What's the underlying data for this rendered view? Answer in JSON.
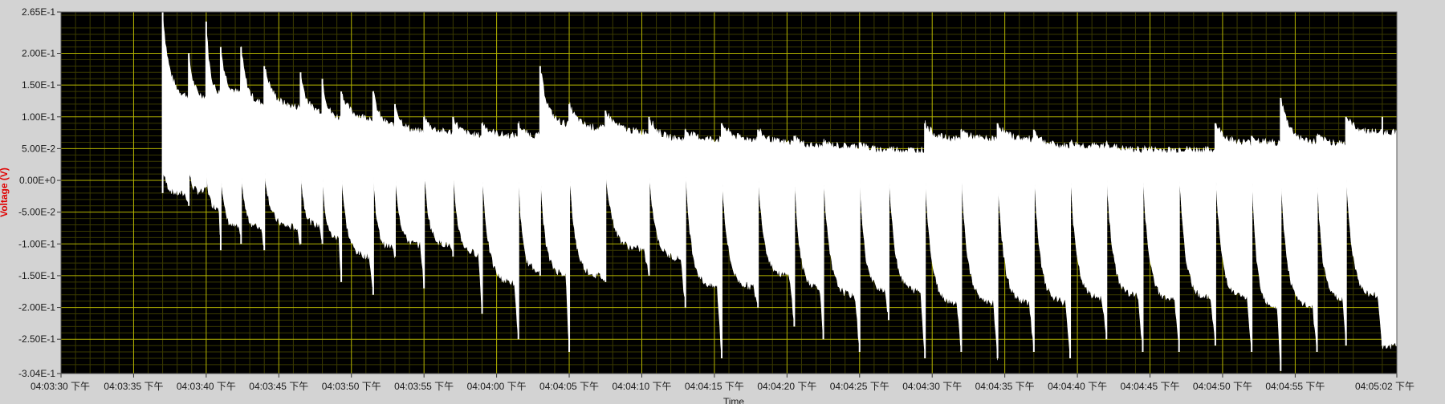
{
  "chart_data": {
    "type": "line",
    "title": "",
    "xlabel": "Time",
    "ylabel": "Voltage (V)",
    "ylim": [
      -0.304,
      0.265
    ],
    "xlim_seconds_from_start": [
      0,
      92
    ],
    "grid": true,
    "legend": "none",
    "colors": {
      "plot_bg": "#000000",
      "grid_major": "#b4b400",
      "grid_minor": "#3a3a00",
      "trace": "#ffffff",
      "frame": "#d3d3d3",
      "ylabel": "#e00000"
    },
    "y_ticks": [
      {
        "value": 0.265,
        "label": "2.65E-1"
      },
      {
        "value": 0.2,
        "label": "2.00E-1"
      },
      {
        "value": 0.15,
        "label": "1.50E-1"
      },
      {
        "value": 0.1,
        "label": "1.00E-1"
      },
      {
        "value": 0.05,
        "label": "5.00E-2"
      },
      {
        "value": 0.0,
        "label": "0.00E+0"
      },
      {
        "value": -0.05,
        "label": "-5.00E-2"
      },
      {
        "value": -0.1,
        "label": "-1.00E-1"
      },
      {
        "value": -0.15,
        "label": "-1.50E-1"
      },
      {
        "value": -0.2,
        "label": "-2.00E-1"
      },
      {
        "value": -0.25,
        "label": "-2.50E-1"
      },
      {
        "value": -0.304,
        "label": "-3.04E-1"
      }
    ],
    "x_ticks": [
      {
        "value": 0,
        "label": "04:03:30 下午"
      },
      {
        "value": 5,
        "label": "04:03:35 下午"
      },
      {
        "value": 10,
        "label": "04:03:40 下午"
      },
      {
        "value": 15,
        "label": "04:03:45 下午"
      },
      {
        "value": 20,
        "label": "04:03:50 下午"
      },
      {
        "value": 25,
        "label": "04:03:55 下午"
      },
      {
        "value": 30,
        "label": "04:04:00 下午"
      },
      {
        "value": 35,
        "label": "04:04:05 下午"
      },
      {
        "value": 40,
        "label": "04:04:10 下午"
      },
      {
        "value": 45,
        "label": "04:04:15 下午"
      },
      {
        "value": 50,
        "label": "04:04:20 下午"
      },
      {
        "value": 55,
        "label": "04:04:25 下午"
      },
      {
        "value": 60,
        "label": "04:04:30 下午"
      },
      {
        "value": 65,
        "label": "04:04:35 下午"
      },
      {
        "value": 70,
        "label": "04:04:40 下午"
      },
      {
        "value": 75,
        "label": "04:04:45 下午"
      },
      {
        "value": 80,
        "label": "04:04:50 下午"
      },
      {
        "value": 85,
        "label": "04:04:55 下午"
      },
      {
        "value": 92,
        "label": "04:05:02 下午"
      }
    ],
    "signal": {
      "start": 7.0,
      "end": 92,
      "spikes": [
        {
          "t": 7.0,
          "min": -0.02,
          "max": 0.265
        },
        {
          "t": 8.8,
          "min": -0.04,
          "max": 0.2
        },
        {
          "t": 10.0,
          "min": -0.01,
          "max": 0.25
        },
        {
          "t": 11.0,
          "min": -0.11,
          "max": 0.21
        },
        {
          "t": 12.4,
          "min": -0.1,
          "max": 0.21
        },
        {
          "t": 14.0,
          "min": -0.11,
          "max": 0.18
        },
        {
          "t": 16.5,
          "min": -0.1,
          "max": 0.17
        },
        {
          "t": 18.0,
          "min": -0.1,
          "max": 0.16
        },
        {
          "t": 19.3,
          "min": -0.16,
          "max": 0.14
        },
        {
          "t": 21.5,
          "min": -0.18,
          "max": 0.14
        },
        {
          "t": 23.0,
          "min": -0.12,
          "max": 0.12
        },
        {
          "t": 25.0,
          "min": -0.17,
          "max": 0.1
        },
        {
          "t": 27.0,
          "min": -0.12,
          "max": 0.1
        },
        {
          "t": 29.0,
          "min": -0.21,
          "max": 0.09
        },
        {
          "t": 31.5,
          "min": -0.25,
          "max": 0.09
        },
        {
          "t": 33.0,
          "min": -0.15,
          "max": 0.18
        },
        {
          "t": 35.0,
          "min": -0.27,
          "max": 0.12
        },
        {
          "t": 37.5,
          "min": -0.16,
          "max": 0.11
        },
        {
          "t": 40.5,
          "min": -0.15,
          "max": 0.1
        },
        {
          "t": 43.0,
          "min": -0.2,
          "max": 0.08
        },
        {
          "t": 45.5,
          "min": -0.28,
          "max": 0.09
        },
        {
          "t": 48.0,
          "min": -0.2,
          "max": 0.08
        },
        {
          "t": 50.5,
          "min": -0.23,
          "max": 0.07
        },
        {
          "t": 52.5,
          "min": -0.25,
          "max": 0.06
        },
        {
          "t": 55.0,
          "min": -0.27,
          "max": 0.06
        },
        {
          "t": 57.0,
          "min": -0.22,
          "max": 0.05
        },
        {
          "t": 59.5,
          "min": -0.28,
          "max": 0.09
        },
        {
          "t": 62.0,
          "min": -0.27,
          "max": 0.08
        },
        {
          "t": 64.5,
          "min": -0.28,
          "max": 0.09
        },
        {
          "t": 67.0,
          "min": -0.27,
          "max": 0.08
        },
        {
          "t": 69.5,
          "min": -0.28,
          "max": 0.06
        },
        {
          "t": 72.0,
          "min": -0.25,
          "max": 0.06
        },
        {
          "t": 74.5,
          "min": -0.27,
          "max": 0.05
        },
        {
          "t": 77.0,
          "min": -0.27,
          "max": 0.05
        },
        {
          "t": 79.5,
          "min": -0.26,
          "max": 0.09
        },
        {
          "t": 82.0,
          "min": -0.27,
          "max": 0.07
        },
        {
          "t": 84.0,
          "min": -0.3,
          "max": 0.13
        },
        {
          "t": 86.5,
          "min": -0.27,
          "max": 0.07
        },
        {
          "t": 88.5,
          "min": -0.26,
          "max": 0.1
        },
        {
          "t": 91.0,
          "min": -0.26,
          "max": 0.1
        }
      ]
    }
  }
}
